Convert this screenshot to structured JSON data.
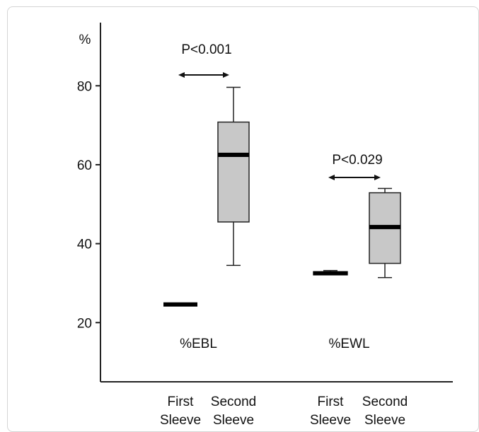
{
  "chart_data": {
    "type": "box",
    "ylabel": "%",
    "ylim": [
      5,
      96
    ],
    "yticks": [
      20,
      40,
      60,
      80
    ],
    "groups": [
      {
        "label": "%EBL",
        "p_value": "P<0.001",
        "boxes": [
          {
            "category": "First Sleeve",
            "category_lines": [
              "First",
              "Sleeve"
            ],
            "min": 24.6,
            "q1": 24.6,
            "median": 24.6,
            "q3": 24.6,
            "max": 24.6
          },
          {
            "category": "Second Sleeve",
            "category_lines": [
              "Second",
              "Sleeve"
            ],
            "min": 34.5,
            "q1": 45.5,
            "median": 62.5,
            "q3": 70.8,
            "max": 79.6
          }
        ]
      },
      {
        "label": "%EWL",
        "p_value": "P<0.029",
        "boxes": [
          {
            "category": "First Sleeve",
            "category_lines": [
              "First",
              "Sleeve"
            ],
            "min": 32.1,
            "q1": 32.1,
            "median": 32.5,
            "q3": 32.9,
            "max": 33.2
          },
          {
            "category": "Second Sleeve",
            "category_lines": [
              "Second",
              "Sleeve"
            ],
            "min": 31.4,
            "q1": 35.0,
            "median": 44.2,
            "q3": 52.9,
            "max": 54.0
          }
        ]
      }
    ],
    "colors": {
      "box_fill": "#c8c8c8",
      "stroke": "#222222",
      "median": "#000000"
    }
  }
}
